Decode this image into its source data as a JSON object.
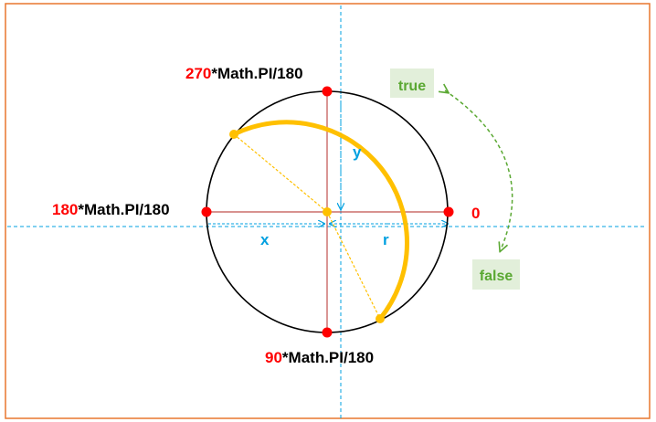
{
  "labels": {
    "angle_270": {
      "num": "270",
      "rest": "*Math.PI/180"
    },
    "angle_180": {
      "num": "180",
      "rest": "*Math.PI/180"
    },
    "angle_90": {
      "num": "90",
      "rest": "*Math.PI/180"
    },
    "angle_0": "0",
    "true_label": "true",
    "false_label": "false",
    "x_label": "x",
    "y_label": "y",
    "r_label": "r"
  },
  "colors": {
    "frame": "#E8772E",
    "circle": "#000000",
    "arc": "#FFC000",
    "point_red": "#FF0000",
    "axis_red": "#C0504D",
    "guide_blue": "#00A0E0",
    "label_red": "#FF0000",
    "label_black": "#000000",
    "green_text": "#5AA832",
    "green_bg": "#E2EFDA",
    "green_arrow": "#5AA832"
  }
}
